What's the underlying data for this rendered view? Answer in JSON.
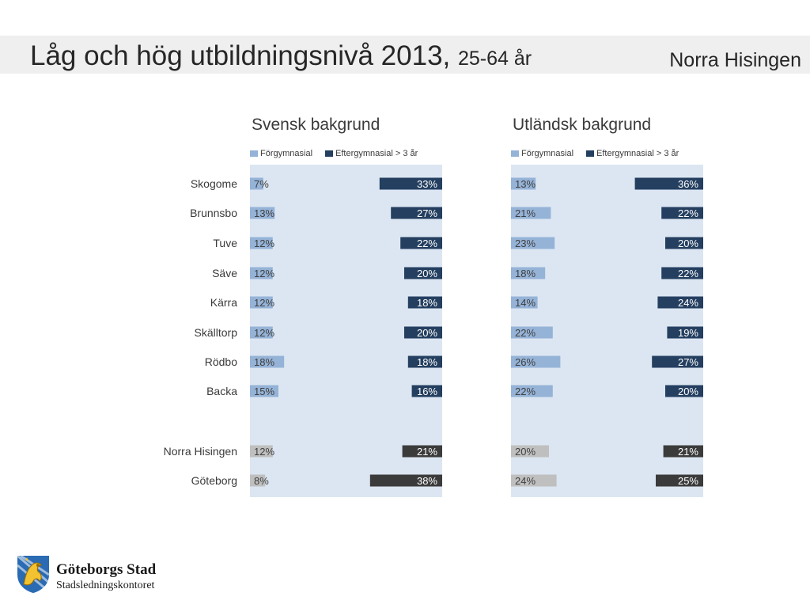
{
  "header": {
    "title": "Låg och hög utbildningsnivå 2013,",
    "title_suffix": "25-64 år",
    "area": "Norra Hisingen"
  },
  "legend": {
    "low": "Förgymnasial",
    "high": "Eftergymnasial > 3 år"
  },
  "colors": {
    "low": "#95b3d7",
    "high": "#243f60",
    "low_total": "#bfbfbf",
    "high_total": "#3b3b3b",
    "panel_bg": "#dce6f2"
  },
  "chart_data": [
    {
      "type": "bar",
      "title": "Svensk bakgrund",
      "categories": [
        "Skogome",
        "Brunnsbo",
        "Tuve",
        "Säve",
        "Kärra",
        "Skälltorp",
        "Rödbo",
        "Backa",
        "Norra Hisingen",
        "Göteborg"
      ],
      "series": [
        {
          "name": "Förgymnasial",
          "values": [
            7,
            13,
            12,
            12,
            12,
            12,
            18,
            15,
            12,
            8
          ],
          "labels": [
            "7%",
            "13%",
            "12%",
            "12%",
            "12%",
            "12%",
            "18%",
            "15%",
            "12%",
            "8%"
          ]
        },
        {
          "name": "Eftergymnasial > 3 år",
          "values": [
            33,
            27,
            22,
            20,
            18,
            20,
            18,
            16,
            21,
            38
          ],
          "labels": [
            "33%",
            "27%",
            "22%",
            "20%",
            "18%",
            "20%",
            "18%",
            "16%",
            "21%",
            "38%"
          ]
        }
      ]
    },
    {
      "type": "bar",
      "title": "Utländsk bakgrund",
      "categories": [
        "Skogome",
        "Brunnsbo",
        "Tuve",
        "Säve",
        "Kärra",
        "Skälltorp",
        "Rödbo",
        "Backa",
        "Norra Hisingen",
        "Göteborg"
      ],
      "series": [
        {
          "name": "Förgymnasial",
          "values": [
            13,
            21,
            23,
            18,
            14,
            22,
            26,
            22,
            20,
            24
          ],
          "labels": [
            "13%",
            "21%",
            "23%",
            "18%",
            "14%",
            "22%",
            "26%",
            "22%",
            "20%",
            "24%"
          ]
        },
        {
          "name": "Eftergymnasial > 3 år",
          "values": [
            36,
            22,
            20,
            22,
            24,
            19,
            27,
            20,
            21,
            25
          ],
          "labels": [
            "36%",
            "22%",
            "20%",
            "22%",
            "24%",
            "19%",
            "27%",
            "20%",
            "21%",
            "25%"
          ]
        }
      ]
    }
  ],
  "logo": {
    "name": "Göteborgs Stad",
    "dept": "Stadsledningskontoret"
  }
}
